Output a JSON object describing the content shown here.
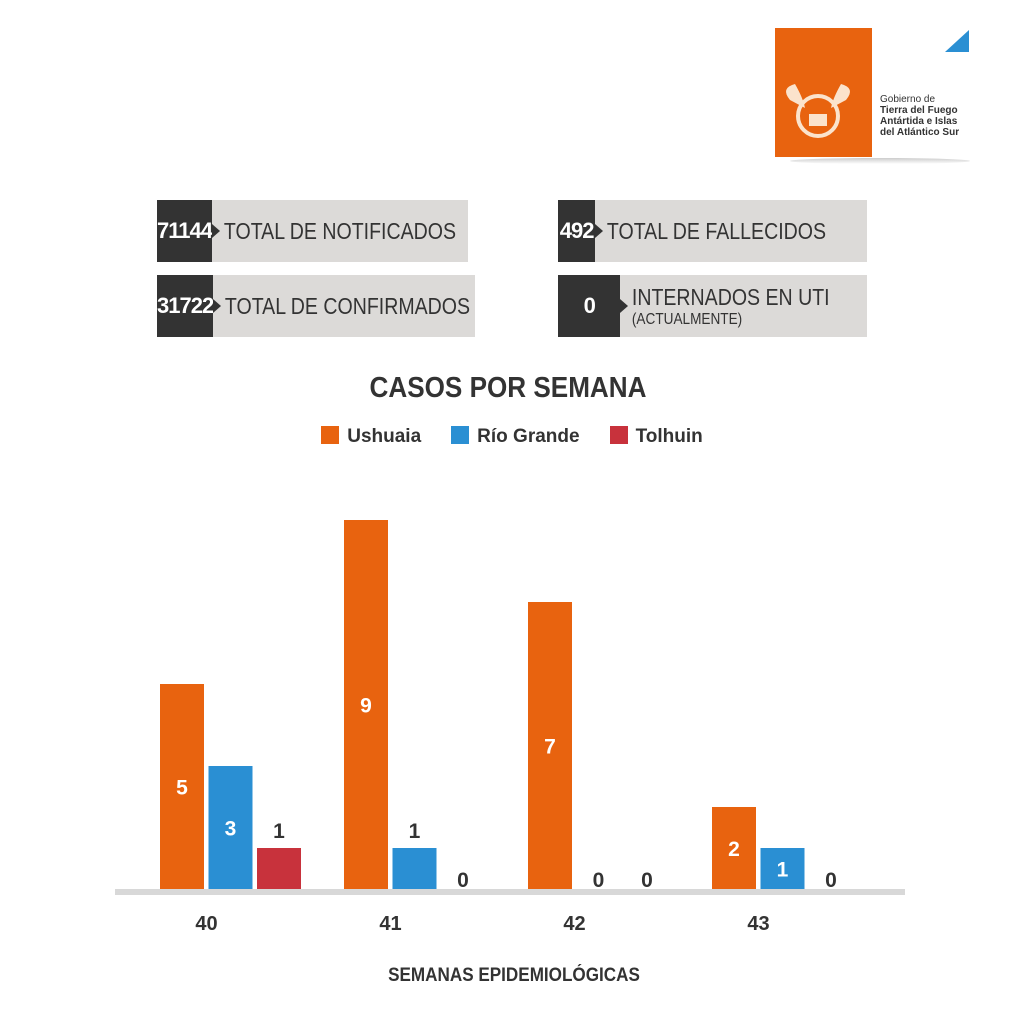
{
  "logo": {
    "lines": [
      "Gobierno de",
      "Tierra del Fuego",
      "Antártida e Islas",
      "del Atlántico Sur"
    ],
    "color": "#e8630f",
    "accent": "#2a8fd3"
  },
  "stats": [
    {
      "value": "71144",
      "label": "TOTAL DE NOTIFICADOS"
    },
    {
      "value": "31722",
      "label": "TOTAL DE CONFIRMADOS"
    },
    {
      "value": "492",
      "label": "TOTAL DE FALLECIDOS"
    },
    {
      "value": "0",
      "label": "INTERNADOS EN UTI",
      "sublabel": "(ACTUALMENTE)"
    }
  ],
  "chart_data": {
    "type": "bar",
    "title": "CASOS POR SEMANA",
    "xlabel": "SEMANAS EPIDEMIOLÓGICAS",
    "ylabel": "",
    "categories": [
      "40",
      "41",
      "42",
      "43"
    ],
    "series": [
      {
        "name": "Ushuaia",
        "color": "#e8630f",
        "values": [
          5,
          9,
          7,
          2
        ]
      },
      {
        "name": "Río Grande",
        "color": "#2a8fd3",
        "values": [
          3,
          1,
          0,
          1
        ]
      },
      {
        "name": "Tolhuin",
        "color": "#c8323c",
        "values": [
          1,
          0,
          0,
          0
        ]
      }
    ],
    "legend": "top-center",
    "grid": false,
    "ylim": [
      0,
      9
    ]
  }
}
